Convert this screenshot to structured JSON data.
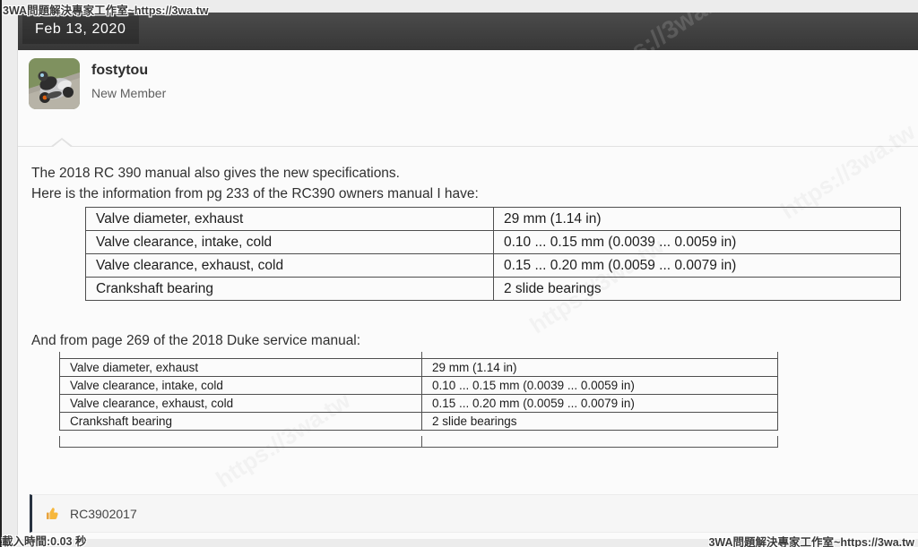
{
  "watermarks": {
    "top_left": "3WA問題解決專家工作室~https://3wa.tw",
    "bottom_left": "載入時間:0.03 秒",
    "bottom_right": "3WA問題解決專家工作室~https://3wa.tw",
    "diagonal": "https://3wa.tw"
  },
  "date_header": {
    "label": "Feb 13, 2020",
    "bar_color": "#424242",
    "badge_color": "#363636"
  },
  "author": {
    "name": "fostytou",
    "title": "New Member",
    "avatar_alt": "motorcycle-rider-cornering-photo"
  },
  "message": {
    "line1": "The 2018 RC 390 manual also gives the new specifications.",
    "line2": "Here is the information from pg 233 of the RC390 owners manual I have:",
    "line3": "And from page 269 of the 2018 Duke service manual:"
  },
  "spec_tables": [
    {
      "source": "RC390 owners manual pg 233",
      "rows": [
        [
          "Valve diameter, exhaust",
          "29 mm (1.14 in)"
        ],
        [
          "Valve clearance, intake, cold",
          "0.10 ... 0.15 mm (0.0039 ... 0.0059 in)"
        ],
        [
          "Valve clearance, exhaust, cold",
          "0.15 ... 0.20 mm (0.0059 ... 0.0079 in)"
        ],
        [
          "Crankshaft bearing",
          "2 slide bearings"
        ]
      ]
    },
    {
      "source": "2018 Duke service manual page 269",
      "rows": [
        [
          "Valve diameter, exhaust",
          "29 mm (1.14 in)"
        ],
        [
          "Valve clearance, intake, cold",
          "0.10 ... 0.15 mm (0.0039 ... 0.0059 in)"
        ],
        [
          "Valve clearance, exhaust, cold",
          "0.15 ... 0.20 mm (0.0059 ... 0.0079 in)"
        ],
        [
          "Crankshaft bearing",
          "2 slide bearings"
        ]
      ]
    }
  ],
  "reaction": {
    "icon": "thumbs-up",
    "label": "RC3902017",
    "accent_color": "#f6b73c"
  }
}
